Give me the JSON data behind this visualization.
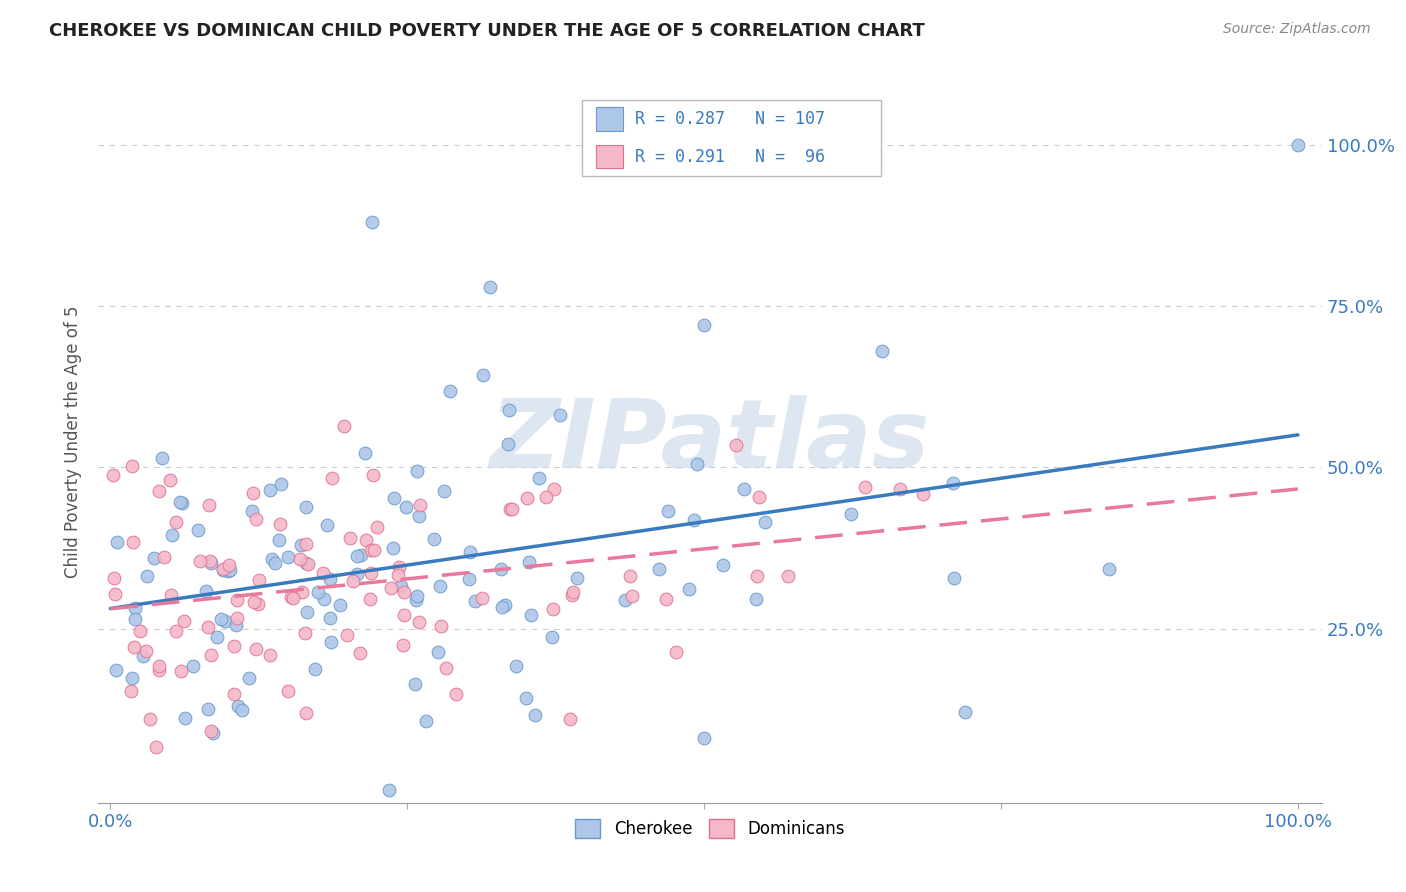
{
  "title": "CHEROKEE VS DOMINICAN CHILD POVERTY UNDER THE AGE OF 5 CORRELATION CHART",
  "source": "Source: ZipAtlas.com",
  "ylabel": "Child Poverty Under the Age of 5",
  "cherokee_color": "#aec6e8",
  "cherokee_edge": "#6699cc",
  "dominican_color": "#f4b8c8",
  "dominican_edge": "#e07090",
  "cherokee_line_color": "#3a7bbf",
  "dominican_line_color": "#e8799a",
  "R_cherokee": "0.287",
  "N_cherokee": "107",
  "R_dominican": "0.291",
  "N_dominican": "96",
  "watermark": "ZIPatlas",
  "watermark_color": "#c8d8e8",
  "background_color": "#ffffff",
  "grid_color": "#cccccc",
  "tick_color": "#3a7bbf",
  "title_color": "#222222",
  "source_color": "#888888",
  "ylabel_color": "#555555"
}
